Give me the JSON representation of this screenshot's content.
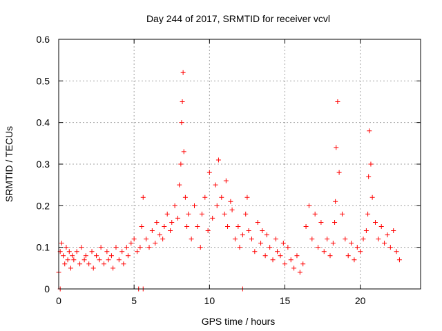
{
  "chart_data": {
    "type": "scatter",
    "title": "Day 244 of 2017, SRMTID for receiver vcvl",
    "xlabel": "GPS time / hours",
    "ylabel": "SRMTID / TECUs",
    "xlim": [
      0,
      24
    ],
    "ylim": [
      0,
      0.6
    ],
    "xticks": [
      0,
      5,
      10,
      15,
      20
    ],
    "xtick_labels": [
      "0",
      "5",
      "10",
      "15",
      "20"
    ],
    "yticks": [
      0,
      0.1,
      0.2,
      0.3,
      0.4,
      0.5,
      0.6
    ],
    "ytick_labels": [
      "0",
      "0.1",
      "0.2",
      "0.3",
      "0.4",
      "0.5",
      "0.6"
    ],
    "grid": true,
    "marker": "+",
    "color": "#ff0000",
    "series": [
      {
        "name": "SRMTID",
        "x": [
          0.0,
          0.1,
          0.2,
          0.3,
          0.4,
          0.5,
          0.6,
          0.7,
          0.8,
          0.9,
          1.0,
          1.2,
          1.4,
          1.5,
          1.7,
          1.8,
          2.0,
          2.2,
          2.3,
          2.5,
          2.7,
          2.8,
          3.0,
          3.2,
          3.3,
          3.5,
          3.6,
          3.8,
          4.0,
          4.2,
          4.3,
          4.5,
          4.6,
          4.8,
          5.0,
          5.2,
          5.4,
          5.5,
          5.6,
          5.8,
          6.0,
          6.2,
          6.4,
          6.5,
          6.7,
          6.9,
          7.0,
          7.2,
          7.4,
          7.5,
          7.7,
          7.9,
          8.0,
          8.1,
          8.15,
          8.2,
          8.25,
          8.3,
          8.4,
          8.5,
          8.6,
          8.8,
          9.0,
          9.2,
          9.4,
          9.5,
          9.7,
          9.9,
          10.0,
          10.2,
          10.4,
          10.5,
          10.6,
          10.8,
          11.0,
          11.1,
          11.2,
          11.4,
          11.5,
          11.7,
          11.9,
          12.0,
          12.2,
          12.4,
          12.5,
          12.6,
          12.8,
          13.0,
          13.2,
          13.4,
          13.5,
          13.7,
          13.8,
          14.0,
          14.2,
          14.4,
          14.5,
          14.7,
          14.9,
          15.0,
          15.2,
          15.4,
          15.6,
          15.8,
          16.0,
          16.2,
          16.4,
          16.6,
          16.8,
          17.0,
          17.2,
          17.4,
          17.6,
          17.8,
          18.0,
          18.2,
          18.3,
          18.35,
          18.4,
          18.5,
          18.6,
          18.8,
          19.0,
          19.2,
          19.4,
          19.6,
          19.8,
          20.0,
          20.2,
          20.4,
          20.5,
          20.55,
          20.6,
          20.7,
          20.8,
          21.0,
          21.2,
          21.4,
          21.6,
          21.8,
          22.0,
          22.2,
          22.4,
          22.6
        ],
        "y": [
          0.04,
          0.09,
          0.11,
          0.08,
          0.06,
          0.1,
          0.07,
          0.09,
          0.05,
          0.08,
          0.07,
          0.09,
          0.06,
          0.1,
          0.07,
          0.08,
          0.06,
          0.09,
          0.05,
          0.08,
          0.07,
          0.1,
          0.06,
          0.09,
          0.07,
          0.08,
          0.05,
          0.1,
          0.07,
          0.09,
          0.06,
          0.1,
          0.08,
          0.11,
          0.12,
          0.09,
          0.1,
          0.15,
          0.22,
          0.12,
          0.1,
          0.14,
          0.11,
          0.16,
          0.13,
          0.12,
          0.15,
          0.18,
          0.14,
          0.16,
          0.2,
          0.17,
          0.25,
          0.3,
          0.4,
          0.45,
          0.52,
          0.33,
          0.22,
          0.15,
          0.18,
          0.12,
          0.2,
          0.15,
          0.1,
          0.18,
          0.22,
          0.14,
          0.28,
          0.17,
          0.25,
          0.2,
          0.31,
          0.22,
          0.18,
          0.26,
          0.15,
          0.21,
          0.19,
          0.12,
          0.15,
          0.1,
          0.13,
          0.18,
          0.22,
          0.14,
          0.12,
          0.09,
          0.16,
          0.11,
          0.14,
          0.08,
          0.13,
          0.1,
          0.07,
          0.12,
          0.09,
          0.08,
          0.11,
          0.06,
          0.1,
          0.07,
          0.05,
          0.08,
          0.04,
          0.06,
          0.15,
          0.2,
          0.12,
          0.18,
          0.1,
          0.16,
          0.09,
          0.12,
          0.08,
          0.11,
          0.16,
          0.21,
          0.34,
          0.45,
          0.28,
          0.18,
          0.12,
          0.08,
          0.11,
          0.07,
          0.1,
          0.09,
          0.12,
          0.14,
          0.18,
          0.27,
          0.38,
          0.3,
          0.22,
          0.16,
          0.12,
          0.15,
          0.11,
          0.13,
          0.1,
          0.14,
          0.09,
          0.07
        ],
        "outliers_x": [
          0.1,
          5.3,
          5.6,
          12.2
        ],
        "outliers_y": [
          0.0,
          0.0,
          0.0,
          0.0
        ]
      }
    ]
  }
}
